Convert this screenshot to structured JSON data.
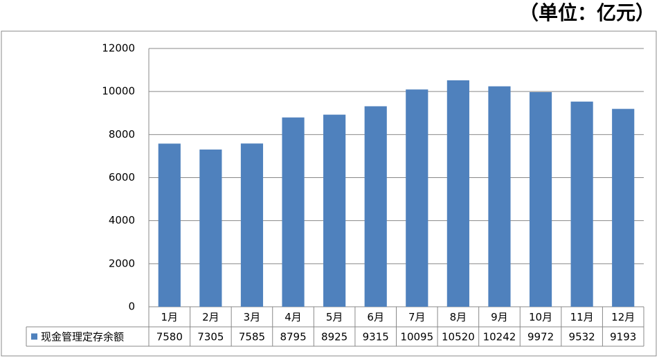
{
  "chart_data": {
    "type": "bar",
    "unit": "（单位：亿元）",
    "categories": [
      "1月",
      "2月",
      "3月",
      "4月",
      "5月",
      "6月",
      "7月",
      "8月",
      "9月",
      "10月",
      "11月",
      "12月"
    ],
    "series": [
      {
        "name": "现金管理定存余额",
        "color": "#4f81bd",
        "values": [
          7580,
          7305,
          7585,
          8795,
          8925,
          9315,
          10095,
          10520,
          10242,
          9972,
          9532,
          9193
        ]
      }
    ],
    "ylim": [
      0,
      12000
    ],
    "yticks": [
      0,
      2000,
      4000,
      6000,
      8000,
      10000,
      12000
    ],
    "grid": true
  }
}
